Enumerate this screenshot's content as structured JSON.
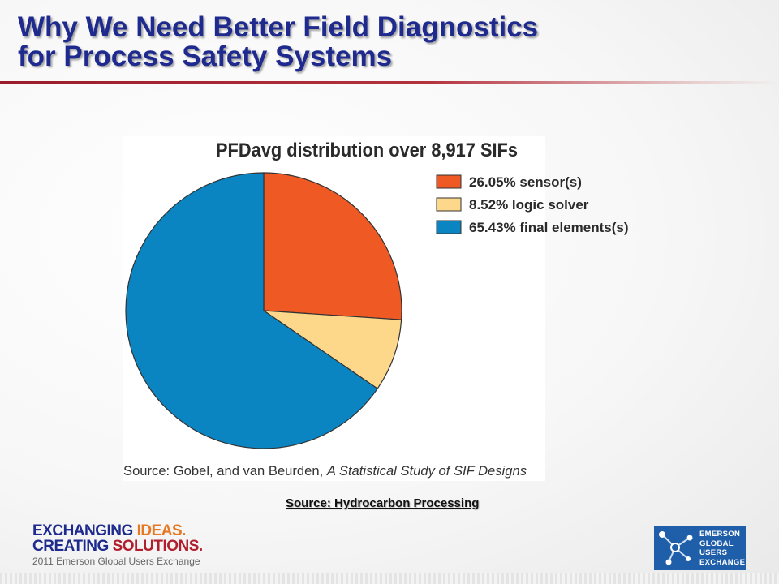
{
  "slide": {
    "title_line1": "Why We Need Better Field Diagnostics",
    "title_line2": "for Process Safety Systems",
    "source_note": "Source: Hydrocarbon Processing"
  },
  "chart_data": {
    "type": "pie",
    "title": "PFDavg distribution over 8,917 SIFs",
    "slices": [
      {
        "label": "26.05% sensor(s)",
        "value": 26.05,
        "color": "#ef5a24"
      },
      {
        "label": "8.52% logic solver",
        "value": 8.52,
        "color": "#fdd88a"
      },
      {
        "label": "65.43% final elements(s)",
        "value": 65.43,
        "color": "#0a85c2"
      }
    ],
    "legend_position": "top-right",
    "start_angle": "12 o'clock, clockwise",
    "source": {
      "prefix": "Source: Gobel, and van Beurden, ",
      "work": "A Statistical Study of SIF Designs"
    }
  },
  "footer": {
    "tagline_row1_a": "EXCHANGING ",
    "tagline_row1_b": "IDEAS.",
    "tagline_row2_a": "CREATING ",
    "tagline_row2_b": "SOLUTIONS.",
    "tagline_sub": "2011 Emerson Global Users Exchange",
    "logo_lines": [
      "EMERSON",
      "GLOBAL",
      "USERS",
      "EXCHANGE"
    ]
  },
  "colors": {
    "title": "#1e2a8e",
    "rule": "#9b1c2a",
    "logo_bg": "#1f5ea8"
  }
}
